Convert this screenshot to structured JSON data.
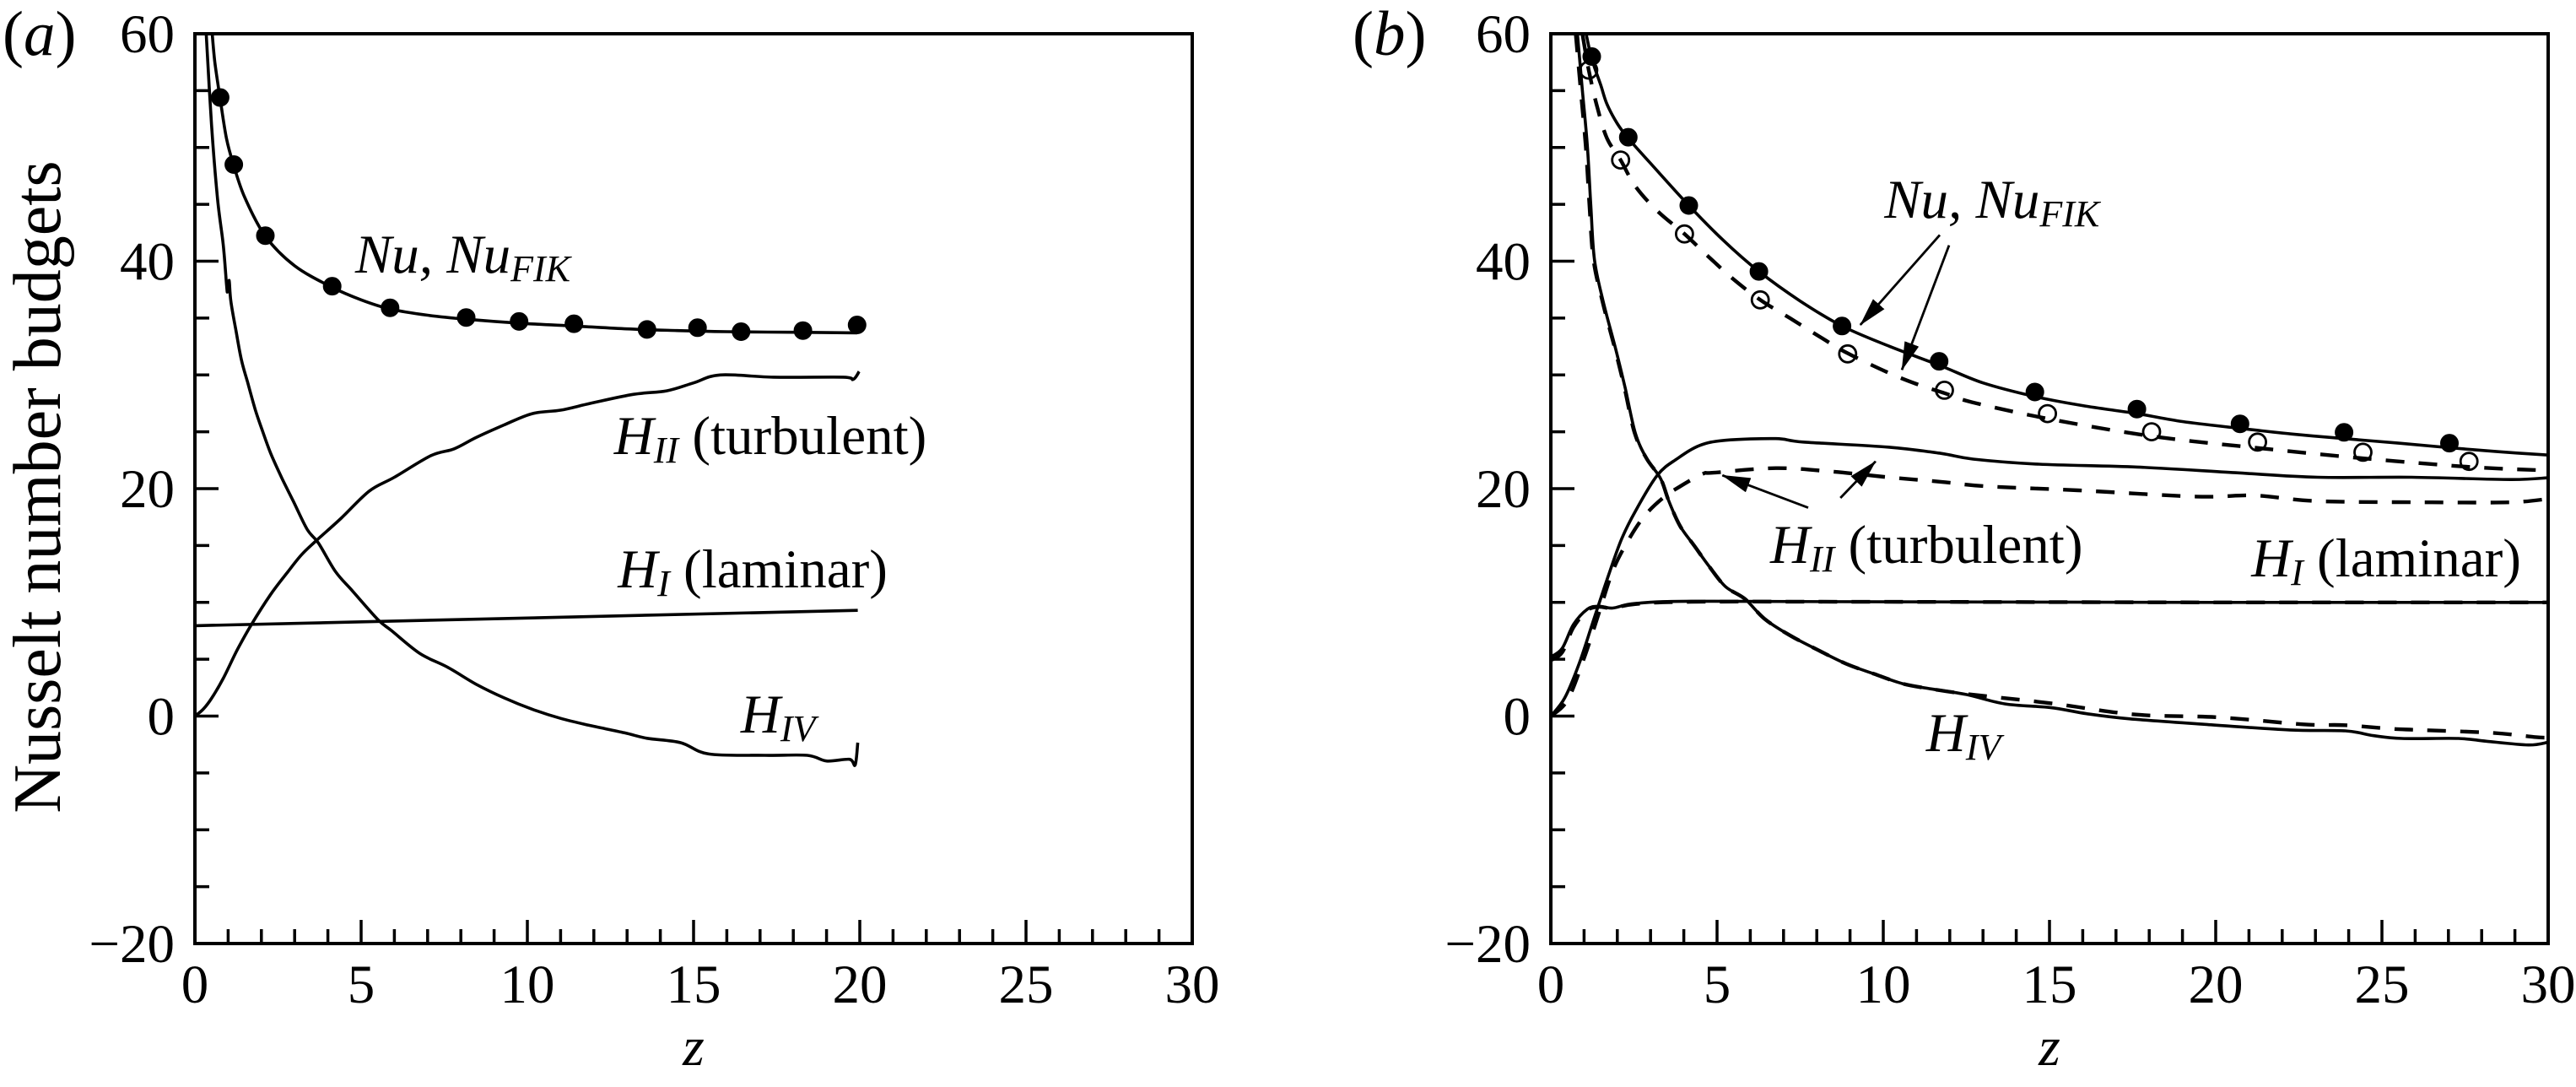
{
  "chart_data": [
    {
      "type": "line",
      "panel_label": {
        "open": "(",
        "letter": "a",
        "close": ")"
      },
      "title": "",
      "xlabel": "z",
      "ylabel": "Nusselt number budgets",
      "xlim": [
        0,
        30
      ],
      "ylim": [
        -20,
        60
      ],
      "xticks": [
        0,
        5,
        10,
        15,
        20,
        25,
        30
      ],
      "xtick_labels": [
        "0",
        "5",
        "10",
        "15",
        "20",
        "25",
        "30"
      ],
      "xminor_step": 1,
      "yticks": [
        -20,
        0,
        20,
        40,
        60
      ],
      "ytick_labels": [
        "−20",
        "0",
        "20",
        "40",
        "60"
      ],
      "yminor_step": 5,
      "grid": false,
      "legend": "none",
      "series": [
        {
          "name": "Nu",
          "line": "solid",
          "marker": "none",
          "x": [
            0.52,
            0.6,
            0.76,
            0.95,
            1.17,
            1.5,
            2.12,
            3.0,
            4.13,
            5.0,
            5.87,
            7.0,
            8.16,
            9.75,
            11.4,
            13.0,
            14.5,
            16.0,
            18.0,
            19.92
          ],
          "y": [
            60,
            57.5,
            54.3,
            50.8,
            48.4,
            45.6,
            42.2,
            39.6,
            37.7,
            36.6,
            35.8,
            35.25,
            34.9,
            34.55,
            34.3,
            34.05,
            33.9,
            33.8,
            33.75,
            33.7
          ]
        },
        {
          "name": "Nu_FIK",
          "line": "none",
          "marker": "filled-circle",
          "x": [
            0.76,
            1.17,
            2.12,
            4.13,
            5.87,
            8.16,
            9.75,
            11.4,
            13.6,
            15.12,
            16.43,
            18.29,
            19.92
          ],
          "y": [
            54.4,
            48.5,
            42.25,
            37.8,
            35.9,
            35.05,
            34.7,
            34.5,
            34.0,
            34.15,
            33.8,
            33.9,
            34.4
          ]
        },
        {
          "name": "H_II (turbulent)",
          "line": "solid",
          "marker": "none",
          "x": [
            0,
            0.25,
            0.51,
            0.85,
            1.27,
            1.69,
            2.28,
            2.8,
            3.21,
            3.64,
            4.4,
            5.25,
            6.0,
            7.1,
            7.8,
            8.46,
            9.3,
            10.15,
            11.0,
            11.9,
            13.2,
            14.19,
            15.0,
            15.8,
            17.4,
            19.5,
            19.8,
            19.98
          ],
          "y": [
            0,
            0.6,
            1.6,
            3.3,
            5.8,
            8.0,
            10.7,
            12.7,
            14.2,
            15.4,
            17.4,
            19.8,
            21.0,
            22.9,
            23.5,
            24.5,
            25.6,
            26.6,
            26.9,
            27.5,
            28.3,
            28.6,
            29.3,
            30.0,
            29.8,
            29.8,
            29.6,
            30.3
          ]
        },
        {
          "name": "H_I (laminar)",
          "line": "solid",
          "marker": "none",
          "x": [
            0,
            19.94
          ],
          "y": [
            7.95,
            9.3
          ]
        },
        {
          "name": "H_IV",
          "line": "solid",
          "marker": "none",
          "x": [
            0.34,
            0.5,
            0.68,
            0.85,
            0.95,
            0.98,
            1.03,
            1.08,
            1.24,
            1.4,
            1.58,
            1.82,
            2.03,
            2.28,
            2.62,
            2.96,
            3.38,
            3.72,
            4.23,
            4.74,
            5.5,
            5.92,
            6.77,
            7.6,
            8.46,
            9.3,
            10.15,
            11.0,
            11.84,
            12.92,
            13.6,
            14.61,
            15.46,
            17.15,
            18.42,
            19.0,
            19.69,
            19.86,
            19.94
          ],
          "y": [
            60,
            52,
            45.5,
            41.5,
            38.0,
            37.3,
            38.3,
            36.5,
            33.8,
            31.3,
            29.4,
            26.9,
            25.1,
            23.1,
            20.9,
            18.9,
            16.4,
            15.2,
            12.7,
            11.0,
            8.5,
            7.5,
            5.5,
            4.3,
            2.8,
            1.6,
            0.6,
            -0.2,
            -0.8,
            -1.47,
            -1.95,
            -2.34,
            -3.33,
            -3.45,
            -3.45,
            -3.95,
            -3.8,
            -4.3,
            -2.34
          ]
        }
      ],
      "annotations": [
        {
          "main": "Nu, Nu",
          "sub": "FIK",
          "suffix": "",
          "x": 4.82,
          "y": 39.0
        },
        {
          "main": "H",
          "sub": "II",
          "suffix": " (turbulent)",
          "x": 12.61,
          "y": 23.04
        },
        {
          "main": "H",
          "sub": "I",
          "suffix": " (laminar)",
          "x": 12.72,
          "y": 11.32
        },
        {
          "main": "H",
          "sub": "IV",
          "suffix": "",
          "x": 16.42,
          "y": -1.45
        }
      ],
      "arrows": []
    },
    {
      "type": "line",
      "panel_label": {
        "open": "(",
        "letter": "b",
        "close": ")"
      },
      "title": "",
      "xlabel": "z",
      "ylabel": "",
      "xlim": [
        0,
        30
      ],
      "ylim": [
        -20,
        60
      ],
      "xticks": [
        0,
        5,
        10,
        15,
        20,
        25,
        30
      ],
      "xtick_labels": [
        "0",
        "5",
        "10",
        "15",
        "20",
        "25",
        "30"
      ],
      "xminor_step": 1,
      "yticks": [
        -20,
        0,
        20,
        40,
        60
      ],
      "ytick_labels": [
        "−20",
        "0",
        "20",
        "40",
        "60"
      ],
      "yminor_step": 5,
      "grid": false,
      "legend": "none",
      "series": [
        {
          "name": "Nu (solid)",
          "line": "solid",
          "marker": "none",
          "x": [
            1.06,
            1.23,
            1.5,
            1.69,
            2.0,
            2.33,
            3.0,
            4.15,
            5.2,
            6.26,
            7.5,
            8.76,
            10.2,
            11.73,
            13.0,
            14.56,
            16.0,
            17.63,
            19.0,
            20.73,
            22.3,
            23.86,
            25.5,
            27.03,
            28.5,
            30
          ],
          "y": [
            60,
            57.8,
            55.5,
            53.8,
            52.1,
            50.8,
            48.6,
            44.9,
            41.8,
            39.1,
            36.5,
            34.3,
            32.5,
            30.8,
            29.3,
            28.1,
            27.3,
            26.6,
            25.9,
            25.3,
            24.8,
            24.4,
            24.0,
            23.6,
            23.25,
            22.95
          ]
        },
        {
          "name": "Nu (dashed)",
          "line": "dashed",
          "marker": "none",
          "x": [
            0.95,
            1.14,
            1.4,
            1.69,
            2.1,
            2.54,
            3.21,
            4.02,
            4.74,
            5.5,
            6.3,
            7.19,
            8.12,
            8.93,
            10.15,
            11.0,
            11.84,
            12.67,
            15.04,
            18.1,
            21.18,
            24.49,
            27.68,
            30
          ],
          "y": [
            60,
            56.8,
            53.5,
            50.8,
            48.9,
            46.6,
            44.4,
            42.4,
            40.4,
            38.4,
            36.6,
            35.0,
            33.3,
            31.9,
            30.2,
            29.2,
            28.4,
            27.6,
            26.1,
            24.6,
            23.6,
            22.65,
            21.9,
            21.6
          ]
        },
        {
          "name": "H_II (turbulent) solid",
          "line": "solid",
          "marker": "none",
          "x": [
            0,
            0.42,
            0.85,
            1.27,
            1.69,
            2.12,
            2.54,
            3.21,
            3.81,
            4.48,
            5.25,
            6.77,
            7.6,
            10.15,
            11.73,
            12.7,
            14.68,
            17.63,
            20.59,
            23.07,
            25.9,
            28.86,
            30
          ],
          "y": [
            0,
            1.6,
            4.6,
            8.3,
            12.0,
            15.5,
            18.0,
            21.2,
            22.65,
            23.8,
            24.25,
            24.4,
            24.1,
            23.65,
            23.1,
            22.6,
            22.15,
            21.9,
            21.4,
            21.0,
            21.0,
            20.8,
            20.96
          ]
        },
        {
          "name": "H_II (turbulent) dashed",
          "line": "dashed",
          "marker": "none",
          "x": [
            0,
            0.5,
            1.0,
            1.44,
            1.86,
            2.28,
            2.79,
            3.38,
            3.89,
            4.57,
            4.9,
            6.77,
            8.46,
            10.15,
            11.73,
            13.14,
            15.86,
            19.41,
            21.18,
            23.07,
            26.5,
            28.86,
            30
          ],
          "y": [
            0,
            1.4,
            5.1,
            9.0,
            12.75,
            15.2,
            17.5,
            19.2,
            20.2,
            21.3,
            21.4,
            21.8,
            21.5,
            21.0,
            20.6,
            20.2,
            19.85,
            19.3,
            19.4,
            18.9,
            18.8,
            18.8,
            19.1
          ]
        },
        {
          "name": "H_I (laminar) solid",
          "line": "solid",
          "marker": "none",
          "x": [
            0,
            0.34,
            0.68,
            1.1,
            1.44,
            1.86,
            2.54,
            4.23,
            10,
            20,
            30
          ],
          "y": [
            5.2,
            5.95,
            8.05,
            9.4,
            9.66,
            9.5,
            9.9,
            10.1,
            10.05,
            10.0,
            10.0
          ]
        },
        {
          "name": "H_I (laminar) dashed",
          "line": "dashed",
          "marker": "none",
          "x": [
            0,
            0.34,
            0.68,
            1.1,
            1.44,
            1.86,
            2.54,
            4.23,
            10,
            20,
            30
          ],
          "y": [
            4.9,
            5.6,
            7.8,
            9.3,
            9.6,
            9.5,
            9.85,
            10.05,
            10.05,
            10.0,
            10.0
          ]
        },
        {
          "name": "H_IV solid",
          "line": "solid",
          "marker": "none",
          "x": [
            0.8,
            0.95,
            1.1,
            1.2,
            1.31,
            1.57,
            1.95,
            2.24,
            2.54,
            2.88,
            3.3,
            3.55,
            3.89,
            4.31,
            4.74,
            5.25,
            5.84,
            6.43,
            7.19,
            8.04,
            8.88,
            9.73,
            10.58,
            11.42,
            12.49,
            13.67,
            15.03,
            16.12,
            17.39,
            19.68,
            22.22,
            23.9,
            24.75,
            25.6,
            27.3,
            28.14,
            29.4,
            30
          ],
          "y": [
            60,
            55,
            50.1,
            45,
            40.2,
            36.5,
            32.3,
            28.8,
            24.9,
            22.65,
            20.9,
            18.9,
            16.7,
            15.0,
            13.25,
            11.4,
            10.3,
            8.55,
            7.1,
            5.8,
            4.6,
            3.7,
            2.85,
            2.4,
            1.9,
            1.07,
            0.75,
            0.21,
            -0.24,
            -0.73,
            -1.22,
            -1.3,
            -1.72,
            -1.97,
            -1.97,
            -2.21,
            -2.54,
            -2.3
          ]
        },
        {
          "name": "H_IV dashed",
          "line": "dashed",
          "marker": "none",
          "x": [
            0.75,
            0.9,
            1.05,
            1.16,
            1.28,
            1.55,
            1.93,
            2.22,
            2.52,
            2.88,
            3.3,
            3.55,
            3.89,
            4.31,
            4.74,
            5.25,
            5.84,
            6.43,
            7.19,
            8.04,
            8.88,
            9.73,
            10.58,
            11.42,
            12.49,
            15.03,
            17.56,
            20.1,
            22.64,
            23.9,
            25.18,
            26.1,
            28.3,
            29.58,
            30
          ],
          "y": [
            60,
            55,
            50.1,
            45,
            40.2,
            36.5,
            32.3,
            28.8,
            24.9,
            22.65,
            20.9,
            18.9,
            16.7,
            15.0,
            13.25,
            11.4,
            10.3,
            8.55,
            7.1,
            5.8,
            4.6,
            3.7,
            2.85,
            2.4,
            1.95,
            1.13,
            0.14,
            -0.11,
            -0.73,
            -0.8,
            -1.1,
            -1.22,
            -1.47,
            -1.84,
            -1.9
          ]
        },
        {
          "name": "Nu_FIK (solid case)",
          "line": "none",
          "marker": "filled-circle",
          "x": [
            1.23,
            2.33,
            4.15,
            6.26,
            8.76,
            11.68,
            14.56,
            17.63,
            20.73,
            23.86,
            27.03
          ],
          "y": [
            58.0,
            50.9,
            44.9,
            39.1,
            34.3,
            31.2,
            28.5,
            27.0,
            25.7,
            24.95,
            24.0
          ]
        },
        {
          "name": "Nu_FIK (dashed case)",
          "line": "none",
          "marker": "open-circle",
          "x": [
            1.14,
            2.1,
            4.02,
            6.3,
            8.93,
            11.84,
            14.94,
            18.07,
            21.26,
            24.43,
            27.62
          ],
          "y": [
            56.8,
            48.9,
            42.4,
            36.6,
            31.85,
            28.65,
            26.6,
            25.0,
            24.1,
            23.2,
            22.4
          ]
        }
      ],
      "annotations": [
        {
          "main": "Nu, Nu",
          "sub": "FIK",
          "suffix": "",
          "x": 10.03,
          "y": 43.82
        },
        {
          "main": "H",
          "sub": "II",
          "suffix": " (turbulent)",
          "x": 6.6,
          "y": 13.47
        },
        {
          "main": "H",
          "sub": "I",
          "suffix": " (laminar)",
          "x": 21.07,
          "y": 12.28
        },
        {
          "main": "H",
          "sub": "IV",
          "suffix": "",
          "x": 11.29,
          "y": -3.08
        }
      ],
      "arrows": [
        {
          "label": "Nu, Nu_FIK",
          "from": [
            11.7,
            42.31
          ],
          "to": [
            9.31,
            34.4
          ]
        },
        {
          "label": "Nu, Nu_FIK",
          "from": [
            11.98,
            41.4
          ],
          "to": [
            10.56,
            30.44
          ]
        },
        {
          "label": "H_II (turbulent)",
          "from": [
            7.74,
            18.32
          ],
          "to": [
            5.16,
            21.17
          ]
        },
        {
          "label": "H_II (turbulent)",
          "from": [
            8.71,
            19.18
          ],
          "to": [
            9.77,
            22.4
          ]
        }
      ]
    }
  ]
}
